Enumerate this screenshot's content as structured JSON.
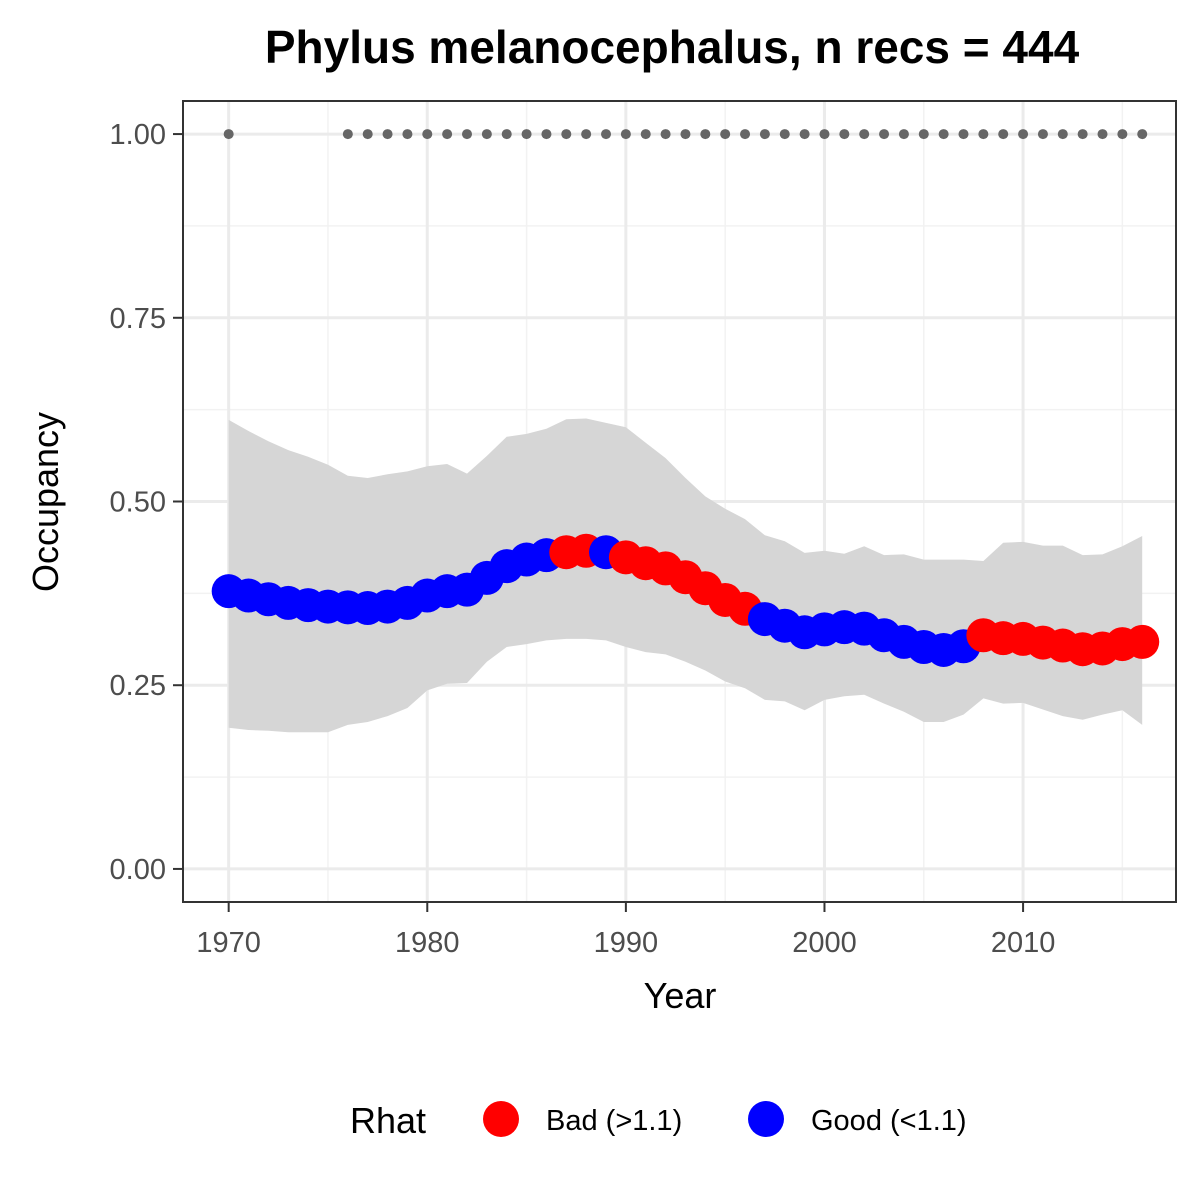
{
  "chart_data": {
    "type": "line",
    "title": "Phylus melanocephalus, n recs = 444",
    "xlabel": "Year",
    "ylabel": "Occupancy",
    "xlim": [
      1967.7,
      2017.7
    ],
    "ylim": [
      -0.045,
      1.045
    ],
    "x_ticks": [
      1970,
      1980,
      1990,
      2000,
      2010
    ],
    "x_tick_labels": [
      "1970",
      "1980",
      "1990",
      "2000",
      "2010"
    ],
    "y_ticks": [
      0,
      0.25,
      0.5,
      0.75,
      1.0
    ],
    "y_tick_labels": [
      "0.00",
      "0.25",
      "0.50",
      "0.75",
      "1.00"
    ],
    "grid": true,
    "colors": {
      "bad": "#ff0000",
      "good": "#0000ff",
      "ribbon": "#d6d6d6",
      "records": "#666666"
    },
    "legend": {
      "title": "Rhat",
      "placement": "bottom",
      "items": [
        {
          "label": "Bad (>1.1)",
          "color": "#ff0000"
        },
        {
          "label": "Good (<1.1)",
          "color": "#0000ff"
        }
      ]
    },
    "years": [
      1970,
      1971,
      1972,
      1973,
      1974,
      1975,
      1976,
      1977,
      1978,
      1979,
      1980,
      1981,
      1982,
      1983,
      1984,
      1985,
      1986,
      1987,
      1988,
      1989,
      1990,
      1991,
      1992,
      1993,
      1994,
      1995,
      1996,
      1997,
      1998,
      1999,
      2000,
      2001,
      2002,
      2003,
      2004,
      2005,
      2006,
      2007,
      2008,
      2009,
      2010,
      2011,
      2012,
      2013,
      2014,
      2015,
      2016
    ],
    "mean": [
      0.378,
      0.372,
      0.367,
      0.362,
      0.359,
      0.357,
      0.356,
      0.355,
      0.357,
      0.362,
      0.372,
      0.378,
      0.38,
      0.396,
      0.412,
      0.421,
      0.427,
      0.431,
      0.433,
      0.431,
      0.424,
      0.416,
      0.409,
      0.397,
      0.382,
      0.366,
      0.354,
      0.34,
      0.331,
      0.322,
      0.326,
      0.329,
      0.327,
      0.318,
      0.309,
      0.302,
      0.298,
      0.303,
      0.318,
      0.314,
      0.313,
      0.308,
      0.304,
      0.299,
      0.3,
      0.306,
      0.309
    ],
    "lower": [
      0.192,
      0.189,
      0.188,
      0.186,
      0.186,
      0.186,
      0.196,
      0.2,
      0.208,
      0.219,
      0.243,
      0.252,
      0.253,
      0.282,
      0.302,
      0.306,
      0.311,
      0.313,
      0.313,
      0.311,
      0.302,
      0.295,
      0.292,
      0.282,
      0.27,
      0.255,
      0.246,
      0.23,
      0.228,
      0.216,
      0.23,
      0.235,
      0.237,
      0.225,
      0.214,
      0.2,
      0.2,
      0.21,
      0.232,
      0.225,
      0.226,
      0.217,
      0.208,
      0.203,
      0.21,
      0.216,
      0.196
    ],
    "upper": [
      0.611,
      0.596,
      0.582,
      0.57,
      0.561,
      0.55,
      0.535,
      0.532,
      0.537,
      0.541,
      0.548,
      0.551,
      0.538,
      0.562,
      0.588,
      0.592,
      0.599,
      0.612,
      0.613,
      0.607,
      0.601,
      0.58,
      0.559,
      0.532,
      0.507,
      0.49,
      0.476,
      0.454,
      0.446,
      0.43,
      0.433,
      0.429,
      0.439,
      0.427,
      0.428,
      0.421,
      0.421,
      0.421,
      0.419,
      0.444,
      0.445,
      0.44,
      0.44,
      0.427,
      0.428,
      0.439,
      0.453
    ],
    "rhat_status": [
      "good",
      "good",
      "good",
      "good",
      "good",
      "good",
      "good",
      "good",
      "good",
      "good",
      "good",
      "good",
      "good",
      "good",
      "good",
      "good",
      "good",
      "bad",
      "bad",
      "good",
      "bad",
      "bad",
      "bad",
      "bad",
      "bad",
      "bad",
      "bad",
      "good",
      "good",
      "good",
      "good",
      "good",
      "good",
      "good",
      "good",
      "good",
      "good",
      "good",
      "bad",
      "bad",
      "bad",
      "bad",
      "bad",
      "bad",
      "bad",
      "bad",
      "bad"
    ],
    "record_years": [
      1970,
      1976,
      1977,
      1978,
      1979,
      1980,
      1981,
      1982,
      1983,
      1984,
      1985,
      1986,
      1987,
      1988,
      1989,
      1990,
      1991,
      1992,
      1993,
      1994,
      1995,
      1996,
      1997,
      1998,
      1999,
      2000,
      2001,
      2002,
      2003,
      2004,
      2005,
      2006,
      2007,
      2008,
      2009,
      2010,
      2011,
      2012,
      2013,
      2014,
      2015,
      2016
    ],
    "record_value": 1.0
  }
}
